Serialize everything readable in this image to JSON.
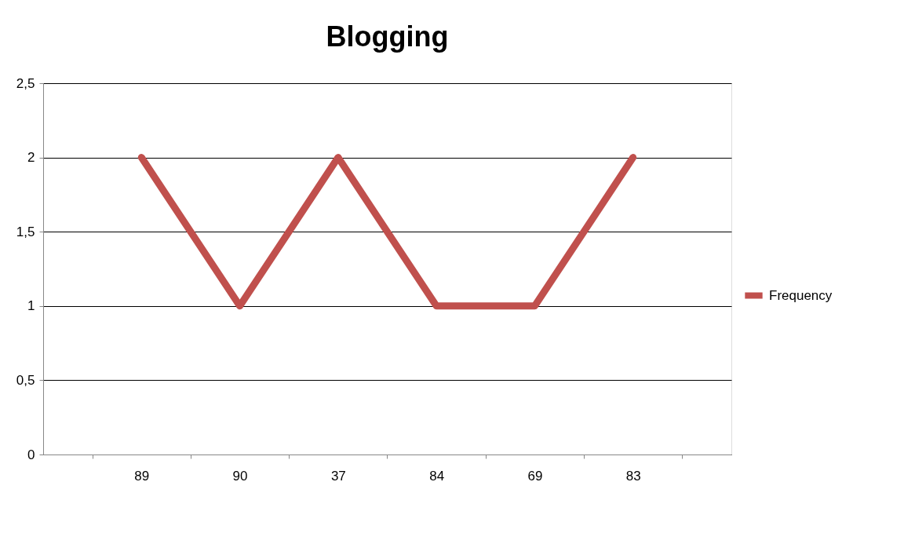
{
  "chart_data": {
    "type": "line",
    "title": "Blogging",
    "categories": [
      "89",
      "90",
      "37",
      "84",
      "69",
      "83"
    ],
    "series": [
      {
        "name": "Frequency",
        "color": "#c0504d",
        "values": [
          2,
          1,
          2,
          1,
          1,
          2
        ]
      }
    ],
    "ylim": [
      0,
      2.5
    ],
    "yticks": [
      0,
      {
        "value": 0.5,
        "label": "0,5"
      },
      1,
      {
        "value": 1.5,
        "label": "1,5"
      },
      2,
      {
        "value": 2.5,
        "label": "2,5"
      }
    ],
    "grid": "y",
    "legend": "right",
    "line_style": "solid"
  }
}
